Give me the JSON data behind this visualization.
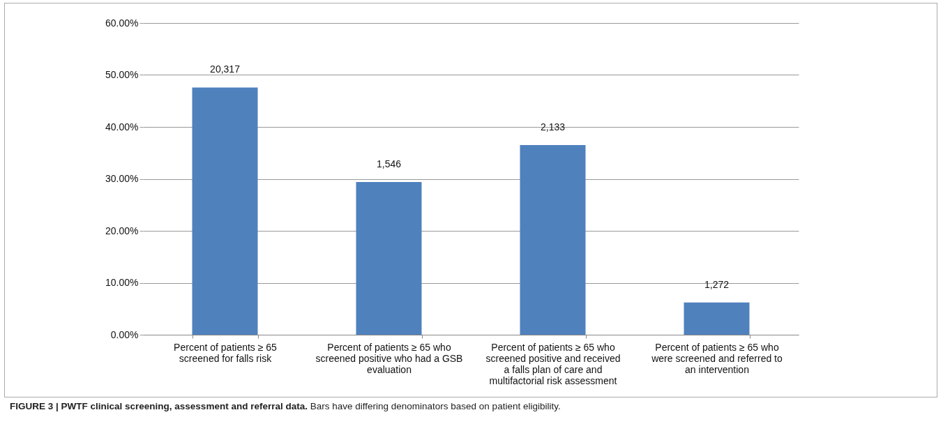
{
  "chart_data": {
    "type": "bar",
    "title": "FIGURE 3 | PWTF clinical screening, assessment and referral data.",
    "subtitle": "Bars have differing denominators based on patient eligibility.",
    "categories": [
      "Percent of patients ≥ 65 screened for falls risk",
      "Percent of patients ≥ 65 who screened positive who had a GSB evaluation",
      "Percent of patients ≥ 65 who screened positive and received a falls plan of care and multifactorial risk assessment",
      "Percent of patients ≥ 65 who were screened and referred to an intervention"
    ],
    "values": [
      47.6,
      29.4,
      36.5,
      6.2
    ],
    "annotations": [
      {
        "text": "20,317",
        "x": "Percent of patients ≥ 65 screened for falls risk",
        "y": 47.6
      },
      {
        "text": "1,546",
        "x": "Percent of patients ≥ 65 who screened positive who had a GSB evaluation",
        "y": 29.4
      },
      {
        "text": "2,133",
        "x": "Percent of patients ≥ 65 who screened positive and received a falls plan of care and multifactorial risk assessment",
        "y": 36.5
      },
      {
        "text": "1,272",
        "x": "Percent of patients ≥ 65 who were screened and referred to an intervention",
        "y": 6.2
      }
    ],
    "color": "#4f81bd",
    "ylim": [
      0,
      60
    ],
    "yticks": [
      {
        "value": 0,
        "label": "0.00%"
      },
      {
        "value": 10,
        "label": "10.00%"
      },
      {
        "value": 20,
        "label": "20.00%"
      },
      {
        "value": 30,
        "label": "30.00%"
      },
      {
        "value": 40,
        "label": "40.00%"
      },
      {
        "value": 50,
        "label": "50.00%"
      },
      {
        "value": 60,
        "label": "60.00%"
      }
    ],
    "grid": "y"
  }
}
